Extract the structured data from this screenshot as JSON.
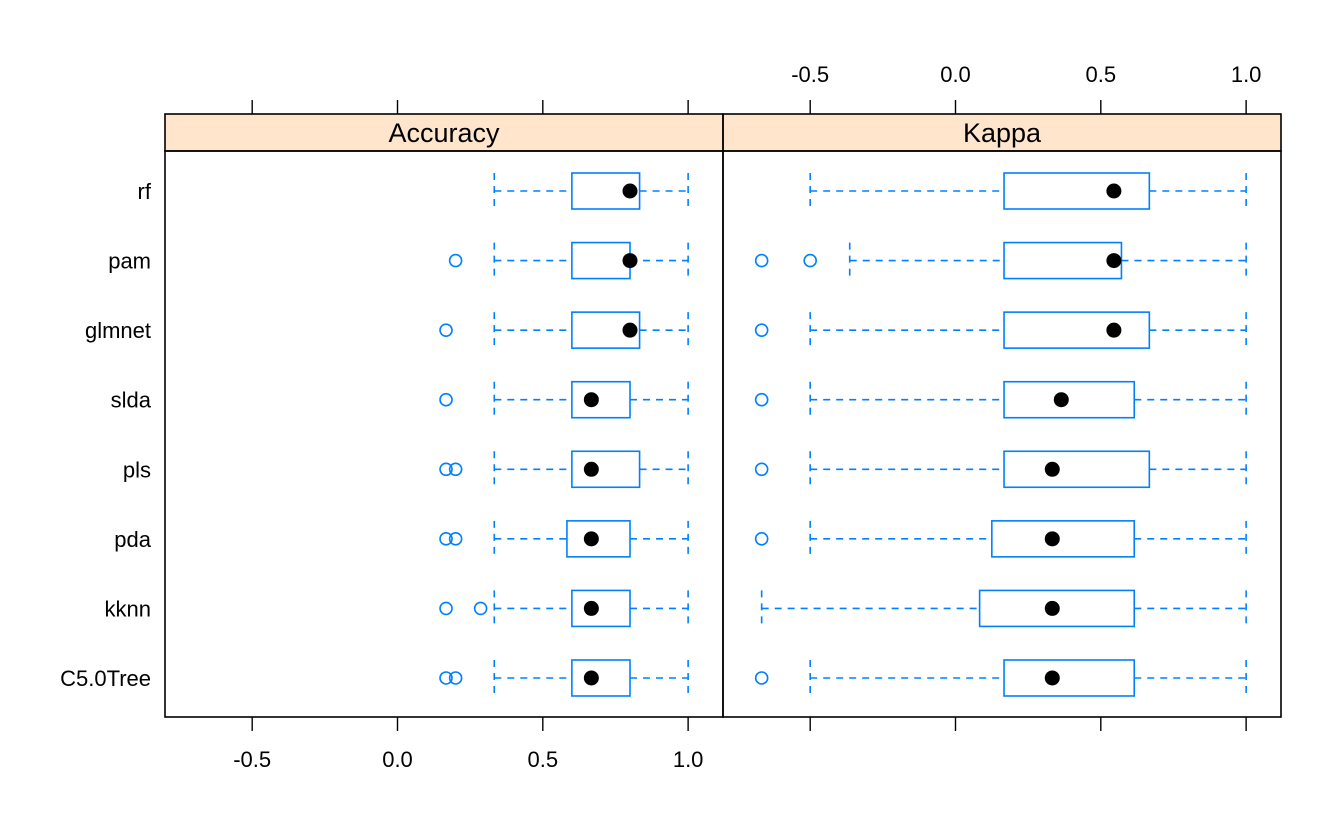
{
  "colors": {
    "box": "#0080ff",
    "median": "#000000",
    "strip": "#ffe5cc",
    "frame": "#000000"
  },
  "chart_data": {
    "type": "box",
    "orientation": "horizontal",
    "xlim": [
      -0.8,
      1.12
    ],
    "x_ticks": [
      -0.5,
      0.0,
      0.5,
      1.0
    ],
    "x_tick_labels": [
      "-0.5",
      "0.0",
      "0.5",
      "1.0"
    ],
    "categories": [
      "rf",
      "pam",
      "glmnet",
      "slda",
      "pls",
      "pda",
      "kknn",
      "C5.0Tree"
    ],
    "panels": [
      {
        "name": "Accuracy",
        "tick_labels_position": "bottom",
        "series": [
          {
            "model": "rf",
            "whisker_low": 0.333,
            "q1": 0.6,
            "median": 0.8,
            "q3": 0.833,
            "whisker_high": 1.0,
            "outliers": []
          },
          {
            "model": "pam",
            "whisker_low": 0.333,
            "q1": 0.6,
            "median": 0.8,
            "q3": 0.8,
            "whisker_high": 1.0,
            "outliers": [
              0.2
            ]
          },
          {
            "model": "glmnet",
            "whisker_low": 0.333,
            "q1": 0.6,
            "median": 0.8,
            "q3": 0.833,
            "whisker_high": 1.0,
            "outliers": [
              0.167
            ]
          },
          {
            "model": "slda",
            "whisker_low": 0.333,
            "q1": 0.6,
            "median": 0.667,
            "q3": 0.8,
            "whisker_high": 1.0,
            "outliers": [
              0.167
            ]
          },
          {
            "model": "pls",
            "whisker_low": 0.333,
            "q1": 0.6,
            "median": 0.667,
            "q3": 0.833,
            "whisker_high": 1.0,
            "outliers": [
              0.167,
              0.2
            ]
          },
          {
            "model": "pda",
            "whisker_low": 0.333,
            "q1": 0.583,
            "median": 0.667,
            "q3": 0.8,
            "whisker_high": 1.0,
            "outliers": [
              0.167,
              0.2
            ]
          },
          {
            "model": "kknn",
            "whisker_low": 0.333,
            "q1": 0.6,
            "median": 0.667,
            "q3": 0.8,
            "whisker_high": 1.0,
            "outliers": [
              0.167,
              0.286
            ]
          },
          {
            "model": "C5.0Tree",
            "whisker_low": 0.333,
            "q1": 0.6,
            "median": 0.667,
            "q3": 0.8,
            "whisker_high": 1.0,
            "outliers": [
              0.167,
              0.2
            ]
          }
        ]
      },
      {
        "name": "Kappa",
        "tick_labels_position": "top",
        "series": [
          {
            "model": "rf",
            "whisker_low": -0.5,
            "q1": 0.167,
            "median": 0.545,
            "q3": 0.667,
            "whisker_high": 1.0,
            "outliers": []
          },
          {
            "model": "pam",
            "whisker_low": -0.364,
            "q1": 0.167,
            "median": 0.545,
            "q3": 0.571,
            "whisker_high": 1.0,
            "outliers": [
              -0.667,
              -0.5
            ]
          },
          {
            "model": "glmnet",
            "whisker_low": -0.5,
            "q1": 0.167,
            "median": 0.545,
            "q3": 0.667,
            "whisker_high": 1.0,
            "outliers": [
              -0.667
            ]
          },
          {
            "model": "slda",
            "whisker_low": -0.5,
            "q1": 0.167,
            "median": 0.364,
            "q3": 0.615,
            "whisker_high": 1.0,
            "outliers": [
              -0.667
            ]
          },
          {
            "model": "pls",
            "whisker_low": -0.5,
            "q1": 0.167,
            "median": 0.333,
            "q3": 0.667,
            "whisker_high": 1.0,
            "outliers": [
              -0.667
            ]
          },
          {
            "model": "pda",
            "whisker_low": -0.5,
            "q1": 0.125,
            "median": 0.333,
            "q3": 0.615,
            "whisker_high": 1.0,
            "outliers": [
              -0.667
            ]
          },
          {
            "model": "kknn",
            "whisker_low": -0.667,
            "q1": 0.083,
            "median": 0.333,
            "q3": 0.615,
            "whisker_high": 1.0,
            "outliers": []
          },
          {
            "model": "C5.0Tree",
            "whisker_low": -0.5,
            "q1": 0.167,
            "median": 0.333,
            "q3": 0.615,
            "whisker_high": 1.0,
            "outliers": [
              -0.667
            ]
          }
        ]
      }
    ]
  }
}
